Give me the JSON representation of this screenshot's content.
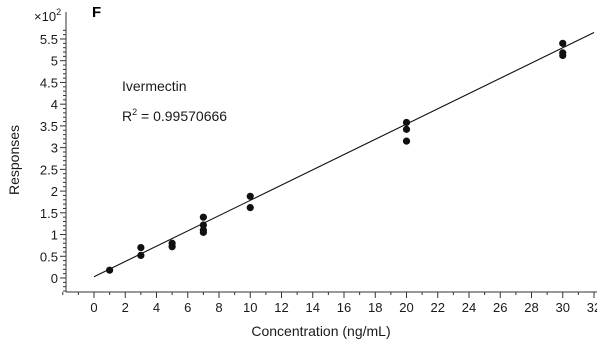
{
  "chart_data": {
    "type": "scatter",
    "panel_label": "F",
    "y_multiplier": "×10",
    "y_multiplier_exp": "2",
    "xlabel": "Concentration (ng/mL)",
    "ylabel": "Responses",
    "annotation_name": "Ivermectin",
    "annotation_r2_prefix": "R",
    "annotation_r2_exp": "2",
    "annotation_r2_value": " = 0.99570666",
    "xlim": [
      -2,
      32
    ],
    "ylim": [
      -0.3,
      5.8
    ],
    "x_ticks": [
      "0",
      "2",
      "4",
      "6",
      "8",
      "10",
      "12",
      "14",
      "16",
      "18",
      "20",
      "22",
      "24",
      "26",
      "28",
      "30",
      "32"
    ],
    "y_ticks": [
      "0",
      "0.5",
      "1",
      "1.5",
      "2",
      "2.5",
      "3",
      "3.5",
      "4",
      "4.5",
      "5",
      "5.5"
    ],
    "grid": false,
    "points": [
      {
        "x": 1,
        "y": 0.18
      },
      {
        "x": 3,
        "y": 0.7
      },
      {
        "x": 3,
        "y": 0.52
      },
      {
        "x": 5,
        "y": 0.8
      },
      {
        "x": 5,
        "y": 0.72
      },
      {
        "x": 7,
        "y": 1.4
      },
      {
        "x": 7,
        "y": 1.22
      },
      {
        "x": 7,
        "y": 1.1
      },
      {
        "x": 7,
        "y": 1.05
      },
      {
        "x": 10,
        "y": 1.88
      },
      {
        "x": 10,
        "y": 1.62
      },
      {
        "x": 20,
        "y": 3.58
      },
      {
        "x": 20,
        "y": 3.42
      },
      {
        "x": 20,
        "y": 3.15
      },
      {
        "x": 30,
        "y": 5.4
      },
      {
        "x": 30,
        "y": 5.18
      },
      {
        "x": 30,
        "y": 5.12
      }
    ],
    "fit_line": {
      "x0": 0,
      "y0": 0.03,
      "x1": 32,
      "y1": 5.65
    }
  }
}
